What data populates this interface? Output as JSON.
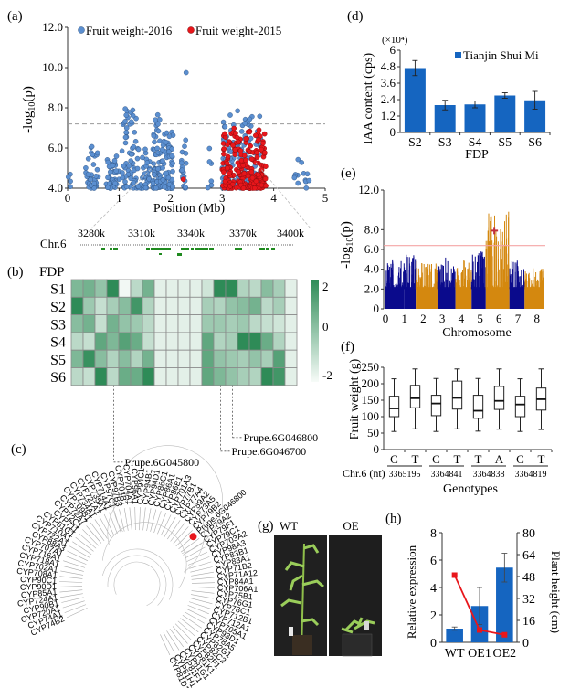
{
  "figure": {
    "panel_labels": [
      "(a)",
      "(b)",
      "(c)",
      "(d)",
      "(e)",
      "(f)",
      "(g)",
      "(h)"
    ]
  },
  "chart_data": [
    {
      "panel": "a",
      "type": "scatter",
      "title": "",
      "xlabel": "Position (Mb)",
      "ylabel": "-log10(p)",
      "xlim": [
        0,
        5
      ],
      "ylim": [
        4.0,
        12.0
      ],
      "xticks": [
        "0",
        "1",
        "2",
        "3",
        "4",
        "5"
      ],
      "yticks": [
        "4.0",
        "6.0",
        "8.0",
        "10.0",
        "12.0"
      ],
      "threshold": 7.2,
      "legend": [
        "Fruit weight-2016",
        "Fruit weight-2015"
      ],
      "legend_position": "top",
      "series": [
        {
          "name": "Fruit weight-2016",
          "color": "#5b8fd0",
          "clusters": [
            {
              "x_range": [
                0.0,
                0.08
              ],
              "y_max": 4.7,
              "n": 4
            },
            {
              "x_range": [
                0.35,
                0.6
              ],
              "y_max": 6.25,
              "n": 40
            },
            {
              "x_range": [
                0.75,
                1.0
              ],
              "y_max": 5.6,
              "n": 40
            },
            {
              "x_range": [
                1.05,
                1.35
              ],
              "y_max": 7.95,
              "n": 60
            },
            {
              "x_range": [
                1.35,
                1.6
              ],
              "y_max": 6.0,
              "n": 40
            },
            {
              "x_range": [
                1.65,
                1.8
              ],
              "y_max": 7.65,
              "n": 55
            },
            {
              "x_range": [
                1.8,
                2.05
              ],
              "y_max": 6.8,
              "n": 70
            },
            {
              "x_range": [
                2.2,
                2.3
              ],
              "y_max": 6.8,
              "n": 20
            },
            {
              "x_range": [
                2.7,
                2.8
              ],
              "y_max": 6.1,
              "n": 6
            },
            {
              "x_range": [
                3.0,
                3.75
              ],
              "y_max": 7.85,
              "n": 140
            },
            {
              "x_range": [
                4.4,
                4.75
              ],
              "y_max": 5.5,
              "n": 14
            }
          ],
          "peaks": [
            {
              "x": 2.3,
              "y": 9.75
            },
            {
              "x": 1.12,
              "y": 7.95
            },
            {
              "x": 3.3,
              "y": 7.85
            },
            {
              "x": 1.75,
              "y": 7.65
            }
          ]
        },
        {
          "name": "Fruit weight-2015",
          "color": "#e8161b",
          "clusters": [
            {
              "x_range": [
                2.2,
                2.25
              ],
              "y_max": 4.6,
              "n": 1
            },
            {
              "x_range": [
                3.0,
                3.85
              ],
              "y_max": 7.0,
              "n": 220
            }
          ]
        }
      ],
      "zoom_track": {
        "chromosome_label": "Chr.6",
        "ticks": [
          "3280k",
          "3310k",
          "3340k",
          "3370k",
          "3400k"
        ]
      }
    },
    {
      "panel": "b",
      "type": "heatmap",
      "title": "FDP",
      "rows": [
        "S1",
        "S2",
        "S3",
        "S4",
        "S5",
        "S6"
      ],
      "n_columns": 19,
      "colorbar_ticks": [
        "2",
        "0",
        "-2"
      ],
      "vmin": -2,
      "vmax": 2,
      "color_low": "#f7fbf8",
      "color_high": "#2e8b57",
      "values": [
        [
          0.4,
          0.6,
          0.0,
          2.0,
          -1.9,
          -0.8,
          0.6,
          -1.6,
          -1.6,
          -1.6,
          -1.6,
          -1.2,
          2.0,
          2.0,
          -0.6,
          -0.8,
          0.2,
          -0.4,
          -1.6
        ],
        [
          2.0,
          -0.2,
          -1.0,
          -0.4,
          0.2,
          1.6,
          -0.6,
          -1.6,
          -1.6,
          -1.6,
          -1.6,
          -0.4,
          -0.6,
          0.0,
          0.2,
          0.6,
          -0.8,
          -0.4,
          -1.6
        ],
        [
          0.2,
          0.6,
          -1.0,
          0.6,
          0.0,
          -0.2,
          -0.8,
          -1.6,
          -1.6,
          -1.6,
          -1.6,
          -0.2,
          -0.2,
          -0.4,
          -0.2,
          -0.8,
          -1.0,
          -1.2,
          -1.6
        ],
        [
          -0.8,
          -1.0,
          1.0,
          0.4,
          1.2,
          0.8,
          -1.0,
          -1.6,
          -1.6,
          -1.6,
          -1.6,
          1.0,
          -0.6,
          -0.4,
          2.0,
          2.0,
          0.8,
          -0.6,
          -1.6
        ],
        [
          0.4,
          1.8,
          0.2,
          -0.6,
          0.2,
          -0.6,
          0.6,
          -1.6,
          -1.6,
          -1.6,
          -1.6,
          1.0,
          0.0,
          -0.2,
          -0.4,
          0.0,
          -0.4,
          1.2,
          -1.6
        ],
        [
          -0.8,
          -1.0,
          2.0,
          -0.8,
          0.8,
          0.8,
          2.0,
          -1.6,
          -1.6,
          -1.6,
          -1.6,
          1.0,
          0.4,
          0.0,
          -0.4,
          -0.6,
          2.0,
          1.6,
          -1.6
        ]
      ],
      "annotations": [
        {
          "label": "Prupe.6G045800",
          "column": 4
        },
        {
          "label": "Prupe.6G046700",
          "column": 13
        },
        {
          "label": "Prupe.6G046800",
          "column": 14
        }
      ]
    },
    {
      "panel": "c",
      "type": "tree",
      "highlight": {
        "label": "Prupe.6G046800",
        "color": "#e8161b"
      },
      "leaves": [
        "CYP74B2",
        "CYP74A1",
        "CYP720A1",
        "CYP90B1",
        "CYP724A1",
        "CYP85A1",
        "CYP90D1",
        "CYP90C1",
        "CYP708A1",
        "CYP702A1",
        "CYP718A1",
        "CYP716A1",
        "CYP707A1",
        "CYP88A3",
        "CYP722A1",
        "CYP710A1",
        "CYP51G1",
        "CYP711",
        "CYP72C1",
        "CYP72A7",
        "CYP709B1",
        "CYP734A1",
        "CYP721A1",
        "CYP735A1",
        "CYP714A1",
        "CYP97C1",
        "CYP97B3",
        "CYP704B1",
        "CYP704A1",
        "CYP96A1",
        "CYP94C1",
        "CYP94B1",
        "CYP94D1",
        "CYP86C1",
        "CYP86A1",
        "CYP86B1",
        "CYP701A3",
        "CYP77B1",
        "CYP77A4",
        "CYP89A2",
        "CYP73A5",
        "CYP79B2",
        "Prupe.6G046800",
        "CYP79A2",
        "CYP79F1",
        "CYP79C1",
        "CYP703A2",
        "CYP98A3",
        "CYP83B1",
        "CYP83A1",
        "CYP71B2",
        "CYP71A12",
        "CYP84A1",
        "CYP706A1",
        "CYP75B1",
        "CYP76G1",
        "CYP78C1",
        "CYP712B1",
        "CYP712A1",
        "CYP705A1",
        "CYP93D1",
        "CYP78A5",
        "CYP82G1",
        "CYP82C2",
        "CYP82F1",
        "CYP81K1",
        "CYP81G1",
        "CYP81F1",
        "CYP81H1",
        "CYP81D1"
      ]
    },
    {
      "panel": "d",
      "type": "bar",
      "title": "",
      "xlabel": "FDP",
      "ylabel": "IAA content (cps)",
      "y_multiplier": "(×10⁴)",
      "categories": [
        "S2",
        "S3",
        "S4",
        "S5",
        "S6"
      ],
      "yticks": [
        "0",
        "1.2",
        "2.4",
        "3.6",
        "4.8",
        "6"
      ],
      "ylim": [
        0,
        6
      ],
      "series": [
        {
          "name": "Tianjin Shui Mi",
          "color": "#1565c0",
          "values": [
            4.7,
            2.0,
            2.05,
            2.7,
            2.35
          ],
          "errors": [
            0.55,
            0.35,
            0.25,
            0.2,
            0.65
          ]
        }
      ],
      "legend_position": "top-right"
    },
    {
      "panel": "e",
      "type": "scatter",
      "title": "",
      "xlabel": "Chromosome",
      "ylabel": "-log10(p)",
      "xticks": [
        "0",
        "1",
        "2",
        "3",
        "4",
        "5",
        "6",
        "7",
        "8"
      ],
      "yticks": [
        "0",
        "2.0",
        "4.0",
        "6.0",
        "8.0",
        "12.0"
      ],
      "ylim": [
        0,
        12.0
      ],
      "threshold": 6.4,
      "threshold_color": "#f4a6a6",
      "colors": [
        "#0a0a8c",
        "#d4880f"
      ],
      "chromosomes": [
        {
          "chr": "0",
          "span": [
            0,
            1.0
          ],
          "color": "#0a0a8c",
          "y_max": 5.5
        },
        {
          "chr": "1",
          "span": [
            1.0,
            1.6
          ],
          "color": "#0a0a8c",
          "y_max": 5.5
        },
        {
          "chr": "2",
          "span": [
            1.6,
            2.75
          ],
          "color": "#d4880f",
          "y_max": 4.9
        },
        {
          "chr": "3",
          "span": [
            2.75,
            3.7
          ],
          "color": "#0a0a8c",
          "y_max": 5.2
        },
        {
          "chr": "4",
          "span": [
            3.7,
            4.55
          ],
          "color": "#d4880f",
          "y_max": 4.9
        },
        {
          "chr": "5",
          "span": [
            4.55,
            5.3
          ],
          "color": "#0a0a8c",
          "y_max": 5.8
        },
        {
          "chr": "6",
          "span": [
            5.3,
            6.55
          ],
          "color": "#d4880f",
          "y_max": 10.0
        },
        {
          "chr": "7",
          "span": [
            6.55,
            7.35
          ],
          "color": "#0a0a8c",
          "y_max": 4.9
        },
        {
          "chr": "8",
          "span": [
            7.35,
            8.35
          ],
          "color": "#d4880f",
          "y_max": 4.2
        }
      ],
      "marker": {
        "x": 5.75,
        "y": 7.9,
        "symbol": "star",
        "color": "#c0303a"
      }
    },
    {
      "panel": "f",
      "type": "box",
      "xlabel": "Genotypes",
      "ylabel": "Fruit weight (g)",
      "yticks": [
        "0",
        "50",
        "100",
        "150",
        "200",
        "250"
      ],
      "ylim": [
        0,
        250
      ],
      "row_label": "Chr.6 (nt)",
      "groups": [
        {
          "position": "3365195",
          "alleles": [
            "C",
            "T"
          ]
        },
        {
          "position": "3364841",
          "alleles": [
            "C",
            "T"
          ]
        },
        {
          "position": "3364838",
          "alleles": [
            "T",
            "A"
          ]
        },
        {
          "position": "3364819",
          "alleles": [
            "C",
            "T"
          ]
        }
      ],
      "boxes": [
        {
          "label": "C",
          "min": 55,
          "q1": 100,
          "median": 125,
          "q3": 162,
          "max": 215
        },
        {
          "label": "T",
          "min": 63,
          "q1": 127,
          "median": 156,
          "q3": 195,
          "max": 245
        },
        {
          "label": "C",
          "min": 55,
          "q1": 103,
          "median": 140,
          "q3": 165,
          "max": 216
        },
        {
          "label": "T",
          "min": 63,
          "q1": 123,
          "median": 157,
          "q3": 208,
          "max": 245
        },
        {
          "label": "T",
          "min": 56,
          "q1": 95,
          "median": 118,
          "q3": 165,
          "max": 216
        },
        {
          "label": "A",
          "min": 62,
          "q1": 122,
          "median": 148,
          "q3": 192,
          "max": 245
        },
        {
          "label": "C",
          "min": 55,
          "q1": 100,
          "median": 137,
          "q3": 162,
          "max": 215
        },
        {
          "label": "T",
          "min": 61,
          "q1": 120,
          "median": 153,
          "q3": 187,
          "max": 245
        }
      ]
    },
    {
      "panel": "g",
      "type": "image",
      "labels": [
        "WT",
        "OE"
      ]
    },
    {
      "panel": "h",
      "type": "bar",
      "categories": [
        "WT",
        "OE1",
        "OE2"
      ],
      "ylabel": "Relative expression",
      "y2label": "Plant height (cm)",
      "yticks": [
        "0",
        "2",
        "4",
        "6",
        "8"
      ],
      "y2ticks": [
        "0",
        "16",
        "32",
        "48",
        "64",
        "80"
      ],
      "ylim": [
        0,
        8
      ],
      "y2lim": [
        0,
        80
      ],
      "series": [
        {
          "name": "Relative expression",
          "type": "bar",
          "color": "#1565c0",
          "values": [
            1.0,
            2.65,
            5.45
          ],
          "errors": [
            0.12,
            1.35,
            1.05
          ]
        },
        {
          "name": "Plant height",
          "type": "line",
          "color": "#e8161b",
          "values": [
            49,
            9,
            5.5
          ]
        }
      ]
    }
  ]
}
